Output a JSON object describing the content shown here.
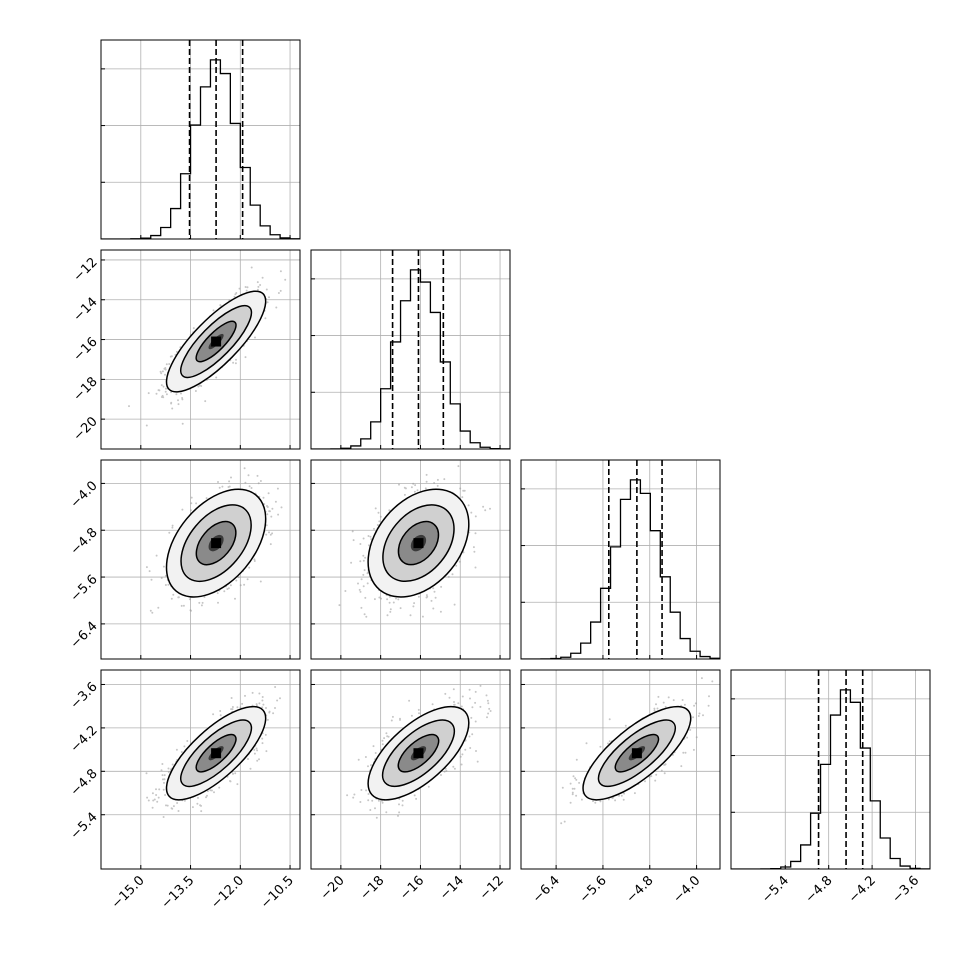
{
  "chart_data": {
    "type": "corner",
    "grid": true,
    "variables": [
      {
        "range": [
          -16.2,
          -10.2
        ],
        "ticks": [
          -15.0,
          -13.5,
          -12.0,
          -10.5
        ],
        "tick_labels": [
          "−15.0",
          "−13.5",
          "−12.0",
          "−10.5"
        ],
        "mean": -12.73,
        "sd": 0.65,
        "quantiles": [
          -13.53,
          -12.73,
          -11.93
        ]
      },
      {
        "range": [
          -21.5,
          -11.5
        ],
        "ticks": [
          -20,
          -18,
          -16,
          -14,
          -12
        ],
        "tick_labels": [
          "−20",
          "−18",
          "−16",
          "−14",
          "−12"
        ],
        "mean": -16.1,
        "sd": 1.1,
        "quantiles": [
          -17.4,
          -16.1,
          -14.85
        ]
      },
      {
        "range": [
          -7.0,
          -3.6
        ],
        "ticks": [
          -6.4,
          -5.6,
          -4.8,
          -4.0
        ],
        "tick_labels": [
          "−6.4",
          "−5.6",
          "−4.8",
          "−4.0"
        ],
        "mean": -5.02,
        "sd": 0.4,
        "quantiles": [
          -5.5,
          -5.02,
          -4.59
        ]
      },
      {
        "range": [
          -6.15,
          -3.4
        ],
        "ticks": [
          -5.4,
          -4.8,
          -4.2,
          -3.6
        ],
        "tick_labels": [
          "−5.4",
          "−4.8",
          "−4.2",
          "−3.6"
        ],
        "mean": -4.55,
        "sd": 0.28,
        "quantiles": [
          -4.94,
          -4.56,
          -4.33
        ]
      }
    ],
    "correlations": [
      [
        1.0,
        0.8,
        0.45,
        0.75
      ],
      [
        0.8,
        1.0,
        0.35,
        0.65
      ],
      [
        0.45,
        0.35,
        1.0,
        0.75
      ],
      [
        0.75,
        0.65,
        0.75,
        1.0
      ]
    ],
    "colors": {
      "line": "#000000",
      "grid": "#b0b0b0",
      "scatter": "#999999"
    }
  }
}
